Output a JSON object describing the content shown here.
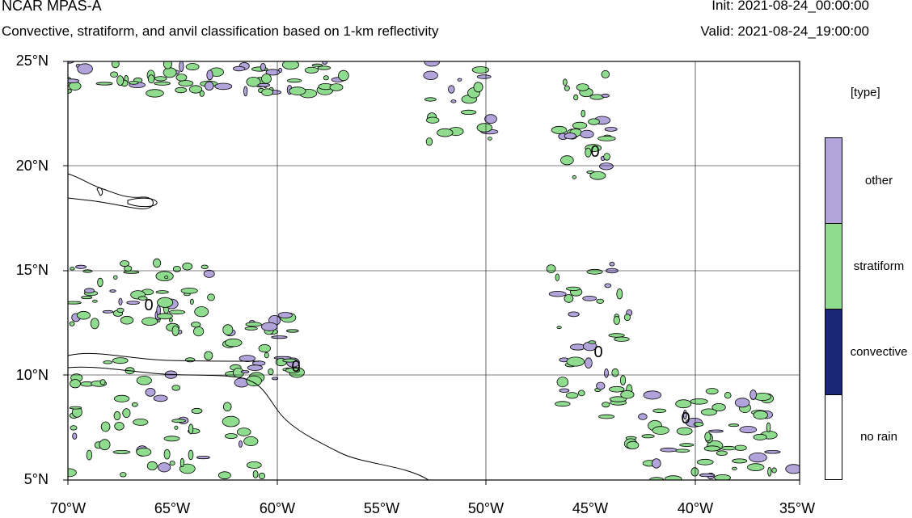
{
  "header": {
    "title": "NCAR MPAS-A",
    "subtitle": "Convective, stratiform, and anvil classification based on 1-km reflectivity",
    "init": "Init: 2021-08-24_00:00:00",
    "valid": "Valid: 2021-08-24_19:00:00"
  },
  "map": {
    "lat_labels": [
      "25°N",
      "20°N",
      "15°N",
      "10°N",
      "5°N"
    ],
    "lon_labels": [
      "70°W",
      "65°W",
      "60°W",
      "55°W",
      "50°W",
      "45°W",
      "40°W",
      "35°W"
    ],
    "lat_range": [
      5,
      25
    ],
    "lon_range": [
      -70,
      -35
    ],
    "contour_labels": [
      "0",
      "0",
      "0",
      "0",
      "0"
    ]
  },
  "legend": {
    "title": "[type]",
    "items": [
      {
        "label": "other",
        "color": "#b3a3db"
      },
      {
        "label": "stratiform",
        "color": "#8fdc8f"
      },
      {
        "label": "convective",
        "color": "#1a2676"
      },
      {
        "label": "no rain",
        "color": "#ffffff"
      }
    ]
  }
}
